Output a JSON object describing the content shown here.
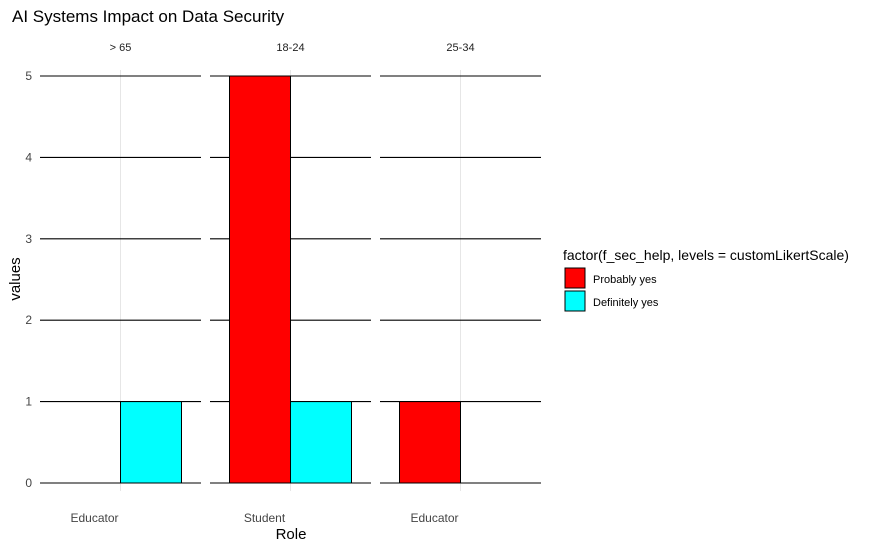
{
  "chart_data": {
    "type": "bar",
    "title": "AI Systems Impact on Data Security",
    "xlabel": "Role",
    "ylabel": "values",
    "ylim": [
      0,
      5
    ],
    "y_ticks": [
      0,
      1,
      2,
      3,
      4,
      5
    ],
    "legend": {
      "title": "factor(f_sec_help, levels = customLikertScale)",
      "placement": "right",
      "entries": [
        {
          "name": "Probably yes",
          "color": "#ff0000"
        },
        {
          "name": "Definitely yes",
          "color": "#00ffff"
        }
      ]
    },
    "facets": [
      {
        "label": "> 65",
        "categories": [
          "Educator"
        ],
        "series": [
          {
            "name": "Probably yes",
            "values": [
              0
            ]
          },
          {
            "name": "Definitely yes",
            "values": [
              1
            ]
          }
        ]
      },
      {
        "label": "18-24",
        "categories": [
          "Student"
        ],
        "series": [
          {
            "name": "Probably yes",
            "values": [
              5
            ]
          },
          {
            "name": "Definitely yes",
            "values": [
              1
            ]
          }
        ]
      },
      {
        "label": "25-34",
        "categories": [
          "Educator"
        ],
        "series": [
          {
            "name": "Probably yes",
            "values": [
              1
            ]
          },
          {
            "name": "Definitely yes",
            "values": [
              0
            ]
          }
        ]
      }
    ],
    "grid": true
  }
}
